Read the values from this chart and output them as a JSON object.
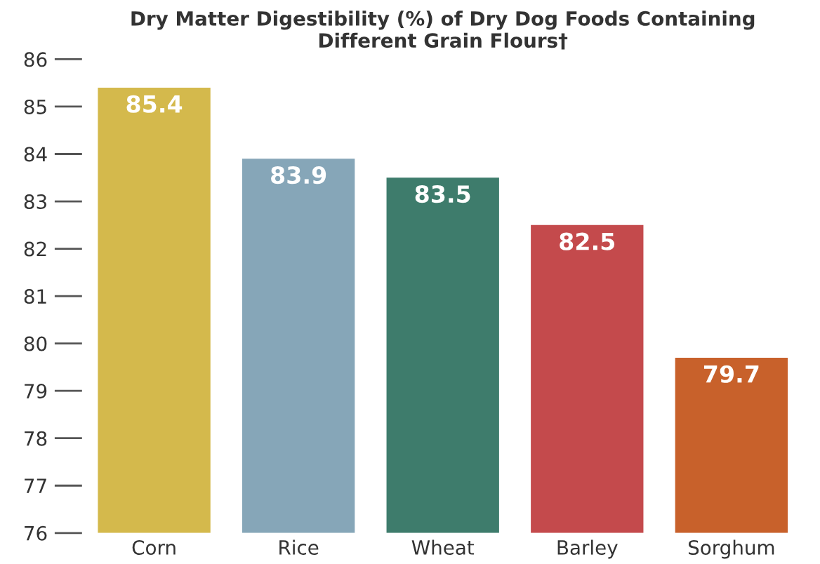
{
  "chart_data": {
    "type": "bar",
    "title": "Dry Matter Digestibility (%) of Dry Dog Foods Containing\nDifferent Grain Flours†",
    "categories": [
      "Corn",
      "Rice",
      "Wheat",
      "Barley",
      "Sorghum"
    ],
    "values": [
      85.4,
      83.9,
      83.5,
      82.5,
      79.7
    ],
    "colors": [
      "#d4b94c",
      "#86a6b8",
      "#3e7c6c",
      "#c44a4c",
      "#c8612b"
    ],
    "ylim": [
      76,
      86
    ],
    "yticks": [
      76,
      77,
      78,
      79,
      80,
      81,
      82,
      83,
      84,
      85,
      86
    ],
    "data_labels": true,
    "grid": false
  }
}
